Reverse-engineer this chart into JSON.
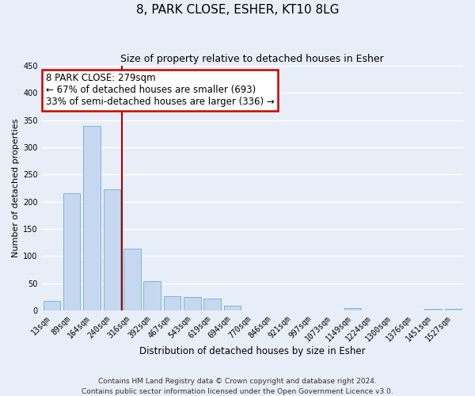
{
  "title": "8, PARK CLOSE, ESHER, KT10 8LG",
  "subtitle": "Size of property relative to detached houses in Esher",
  "xlabel": "Distribution of detached houses by size in Esher",
  "ylabel": "Number of detached properties",
  "bar_color": "#c5d8f0",
  "bar_edge_color": "#6baed6",
  "background_color": "#e8eef8",
  "grid_color": "#ffffff",
  "categories": [
    "13sqm",
    "89sqm",
    "164sqm",
    "240sqm",
    "316sqm",
    "392sqm",
    "467sqm",
    "543sqm",
    "619sqm",
    "694sqm",
    "770sqm",
    "846sqm",
    "921sqm",
    "997sqm",
    "1073sqm",
    "1149sqm",
    "1224sqm",
    "1300sqm",
    "1376sqm",
    "1451sqm",
    "1527sqm"
  ],
  "values": [
    17,
    215,
    340,
    222,
    113,
    53,
    26,
    25,
    21,
    8,
    0,
    0,
    0,
    0,
    0,
    4,
    0,
    0,
    0,
    3,
    2
  ],
  "vline_x": 3.5,
  "vline_color": "#aa0000",
  "annotation_box_text": "8 PARK CLOSE: 279sqm\n← 67% of detached houses are smaller (693)\n33% of semi-detached houses are larger (336) →",
  "annotation_box_color": "#cc0000",
  "annotation_box_bg": "#ffffff",
  "ylim": [
    0,
    450
  ],
  "footer_line1": "Contains HM Land Registry data © Crown copyright and database right 2024.",
  "footer_line2": "Contains public sector information licensed under the Open Government Licence v3.0.",
  "title_fontsize": 11,
  "subtitle_fontsize": 9,
  "xlabel_fontsize": 8.5,
  "ylabel_fontsize": 8,
  "tick_fontsize": 7,
  "footer_fontsize": 6.5,
  "annotation_fontsize": 8.5
}
